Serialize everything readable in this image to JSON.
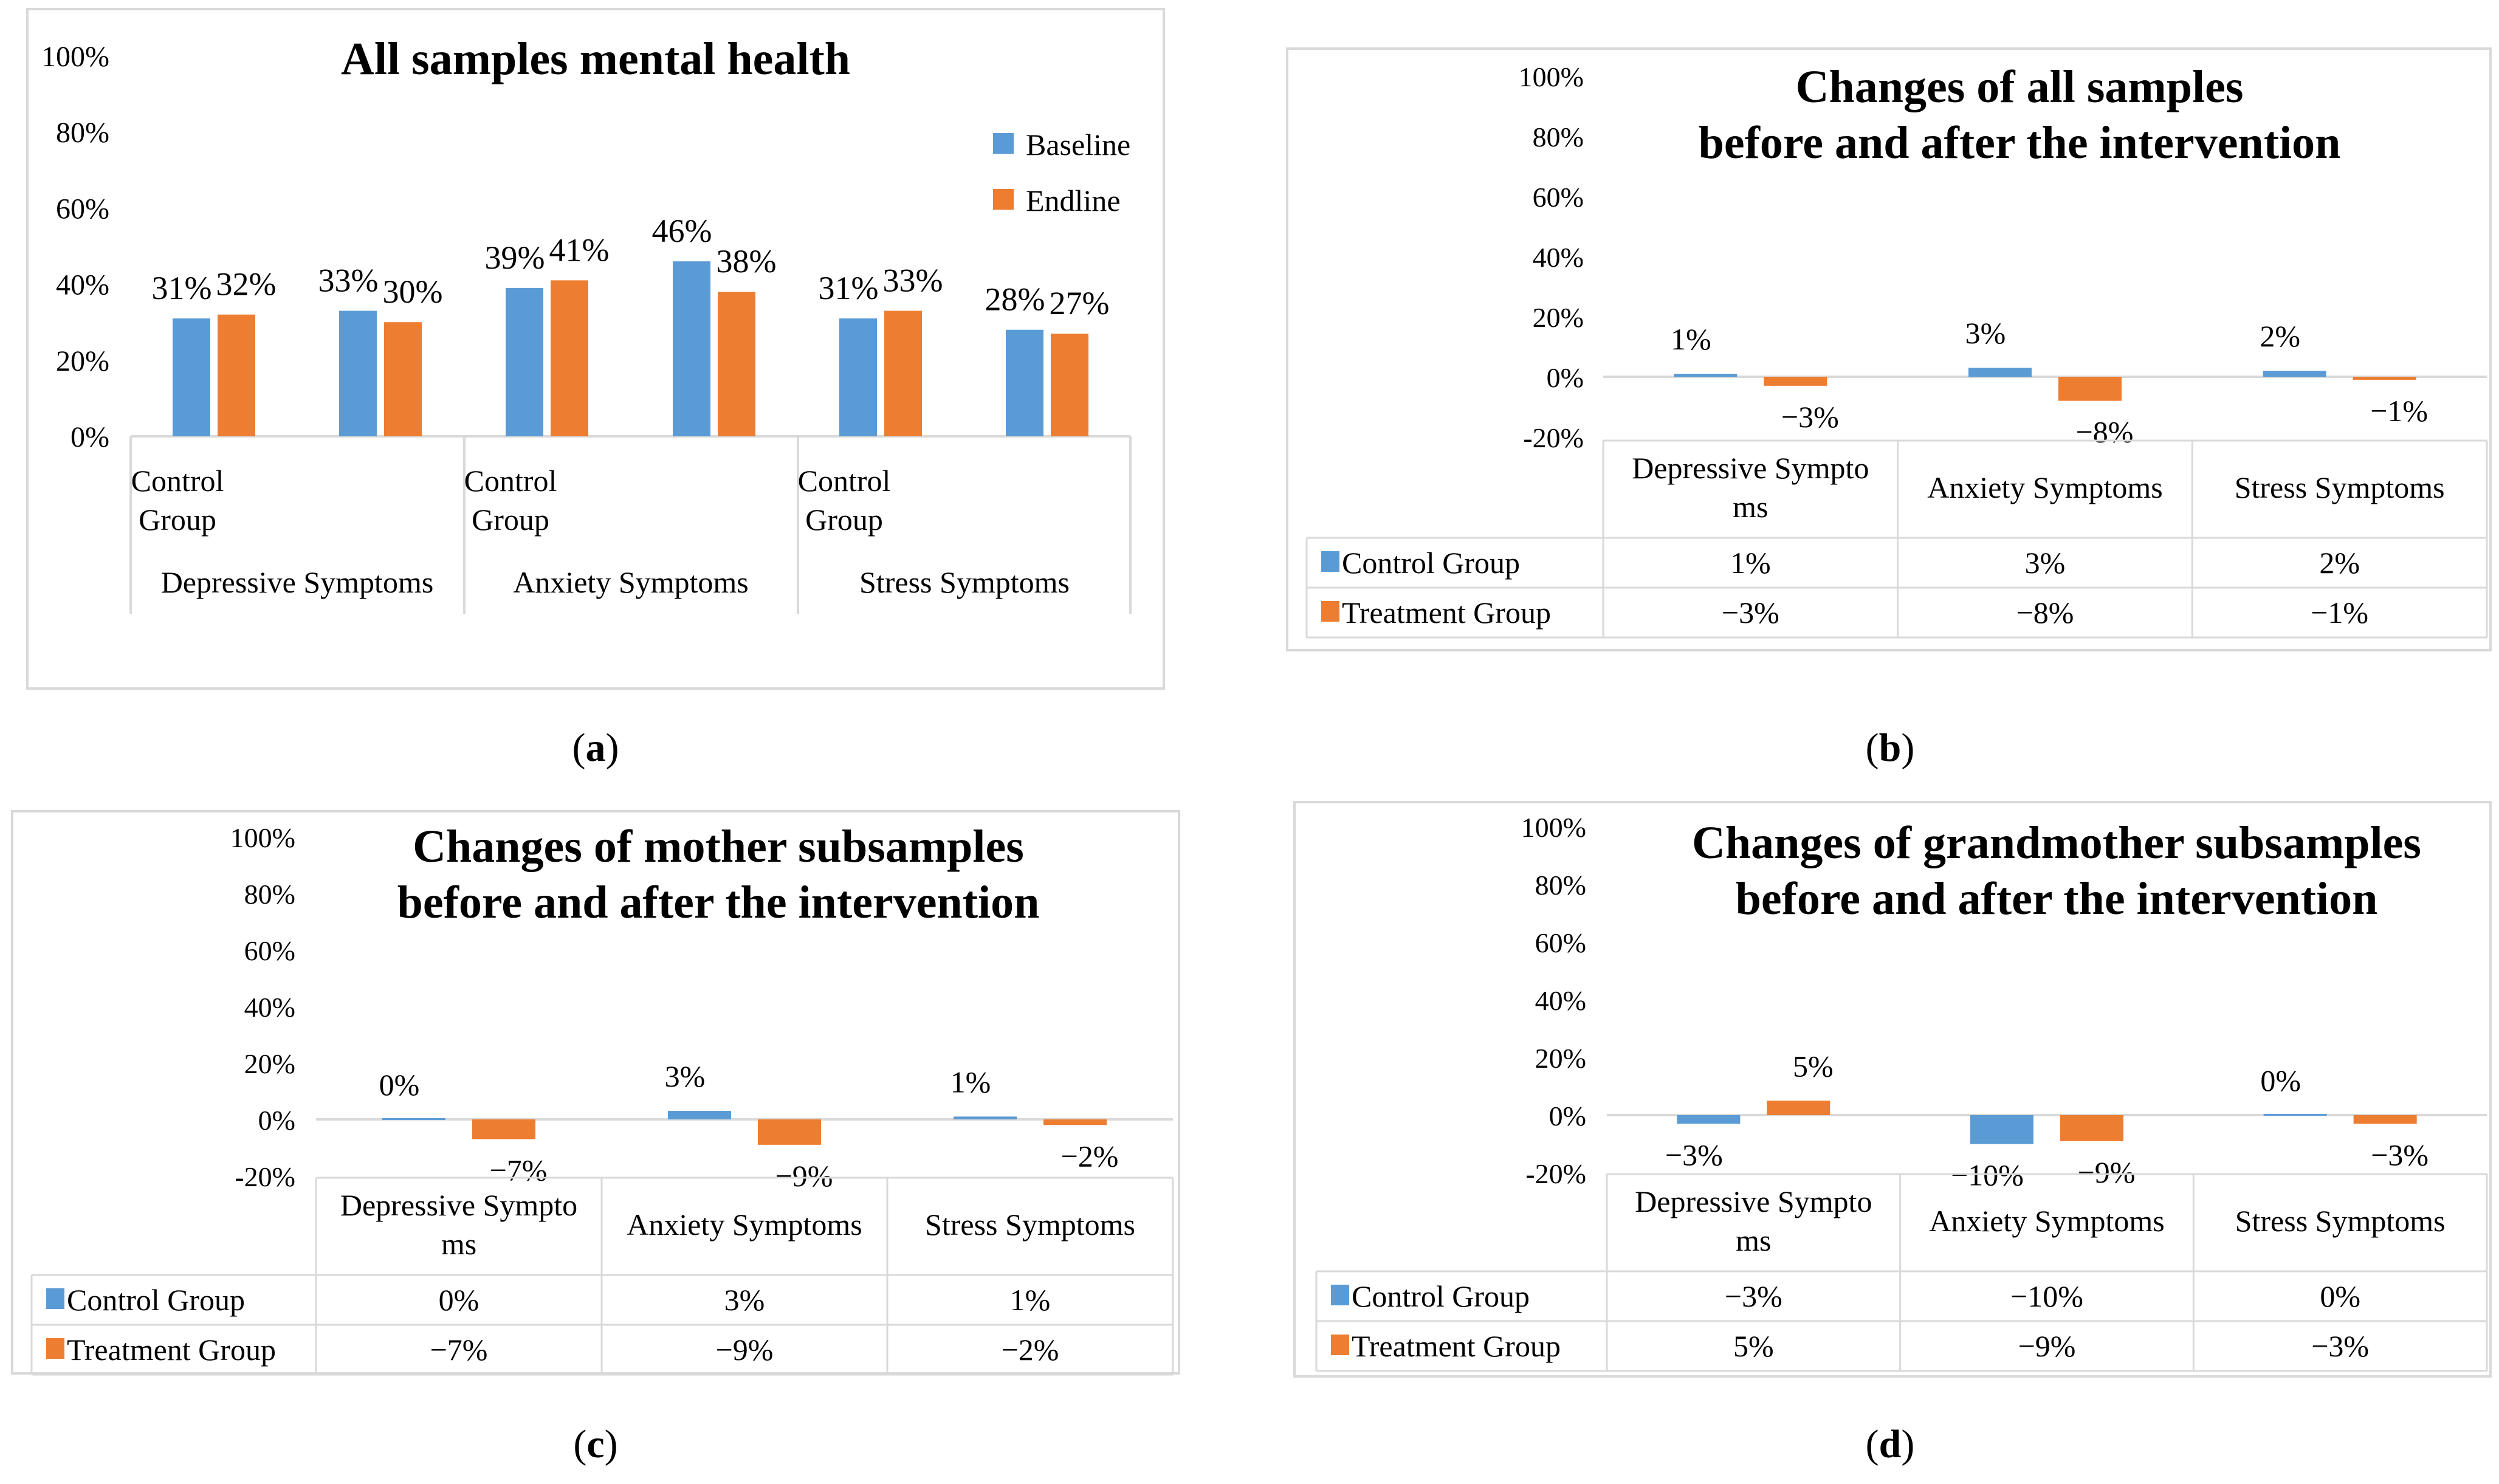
{
  "colors": {
    "baseline": "#5b9bd5",
    "endline": "#ed7d31",
    "axis": "#d9d9d9",
    "border": "#d9d9d9"
  },
  "panel_labels": [
    "(a)",
    "(b)",
    "(c)",
    "(d)"
  ],
  "chart_data": [
    {
      "type": "bar",
      "title": "All samples mental health",
      "yticks": [
        "100%",
        "80%",
        "60%",
        "40%",
        "20%",
        "0%"
      ],
      "ylim": [
        0,
        100
      ],
      "legend_position": "right",
      "categories": [
        "Control Group",
        "",
        "Control Group",
        "",
        "Control Group",
        ""
      ],
      "groups": [
        "Depressive Symptoms",
        "Anxiety Symptoms",
        "Stress Symptoms"
      ],
      "series": [
        {
          "name": "Baseline",
          "values": [
            31,
            33,
            39,
            46,
            31,
            28
          ],
          "labels": [
            "31%",
            "33%",
            "39%",
            "46%",
            "31%",
            "28%"
          ]
        },
        {
          "name": "Endline",
          "values": [
            32,
            30,
            41,
            38,
            33,
            27
          ],
          "labels": [
            "32%",
            "30%",
            "41%",
            "38%",
            "33%",
            "27%"
          ]
        }
      ]
    },
    {
      "type": "bar",
      "title_lines": [
        "Changes of all samples",
        "before and after the intervention"
      ],
      "yticks": [
        "100%",
        "80%",
        "60%",
        "40%",
        "20%",
        "0%",
        "-20%"
      ],
      "ylim": [
        -20,
        100
      ],
      "categories": [
        "Depressive Sympto ms",
        "Anxiety Symptoms",
        "Stress Symptoms"
      ],
      "series": [
        {
          "name": "Control Group",
          "values": [
            1,
            3,
            2
          ],
          "labels": [
            "1%",
            "3%",
            "2%"
          ]
        },
        {
          "name": "Treatment Group",
          "values": [
            -3,
            -8,
            -1
          ],
          "labels": [
            "−3%",
            "−8%",
            "−1%"
          ]
        }
      ]
    },
    {
      "type": "bar",
      "title_lines": [
        "Changes of mother subsamples",
        "before and after the intervention"
      ],
      "yticks": [
        "100%",
        "80%",
        "60%",
        "40%",
        "20%",
        "0%",
        "-20%"
      ],
      "ylim": [
        -20,
        100
      ],
      "categories": [
        "Depressive Sympto ms",
        "Anxiety Symptoms",
        "Stress Symptoms"
      ],
      "series": [
        {
          "name": "Control Group",
          "values": [
            0,
            3,
            1
          ],
          "labels": [
            "0%",
            "3%",
            "1%"
          ]
        },
        {
          "name": "Treatment Group",
          "values": [
            -7,
            -9,
            -2
          ],
          "labels": [
            "−7%",
            "−9%",
            "−2%"
          ]
        }
      ]
    },
    {
      "type": "bar",
      "title_lines": [
        "Changes of grandmother subsamples",
        "before and after the intervention"
      ],
      "yticks": [
        "100%",
        "80%",
        "60%",
        "40%",
        "20%",
        "0%",
        "-20%"
      ],
      "ylim": [
        -20,
        100
      ],
      "categories": [
        "Depressive Sympto ms",
        "Anxiety Symptoms",
        "Stress Symptoms"
      ],
      "series": [
        {
          "name": "Control Group",
          "values": [
            -3,
            -10,
            0
          ],
          "labels": [
            "−3%",
            "−10%",
            "0%"
          ]
        },
        {
          "name": "Treatment Group",
          "values": [
            5,
            -9,
            -3
          ],
          "labels": [
            "5%",
            "−9%",
            "−3%"
          ]
        }
      ]
    }
  ]
}
